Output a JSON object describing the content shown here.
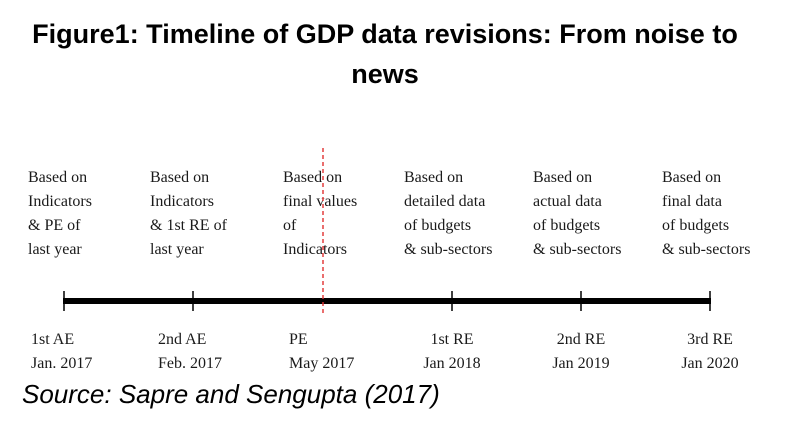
{
  "title": {
    "line1": "Figure1: Timeline of GDP data revisions: From noise to",
    "line2": "news"
  },
  "columns": [
    {
      "description": [
        "Based on",
        "Indicators",
        "& PE of",
        "last year"
      ],
      "estimate": "1st AE",
      "date": "Jan. 2017"
    },
    {
      "description": [
        "Based on",
        "Indicators",
        "& 1st RE of",
        "last year"
      ],
      "estimate": "2nd AE",
      "date": "Feb. 2017"
    },
    {
      "description": [
        "Based on",
        "final values",
        "of",
        "Indicators"
      ],
      "estimate": "PE",
      "date": "May 2017"
    },
    {
      "description": [
        "Based on",
        "detailed data",
        "of budgets",
        "& sub-sectors"
      ],
      "estimate": "1st RE",
      "date": "Jan 2018"
    },
    {
      "description": [
        "Based on",
        "actual data",
        "of budgets",
        "& sub-sectors"
      ],
      "estimate": "2nd RE",
      "date": "Jan 2019"
    },
    {
      "description": [
        "Based on",
        "final data",
        "of budgets",
        "& sub-sectors"
      ],
      "estimate": "3rd RE",
      "date": "Jan 2020"
    }
  ],
  "colors": {
    "timeline": "#000000",
    "divider": "#e03030"
  },
  "source": "Source: Sapre and Sengupta (2017)"
}
